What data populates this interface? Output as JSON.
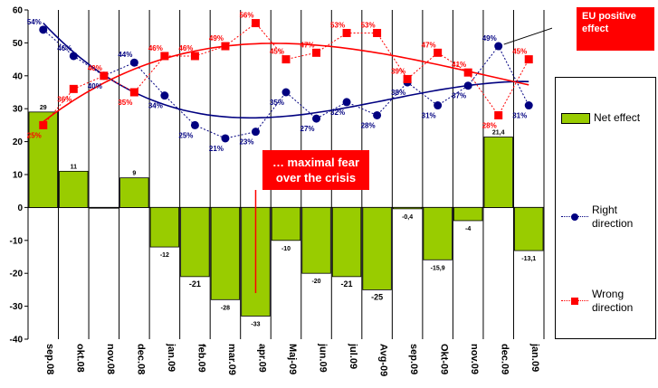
{
  "colors": {
    "net_effect": "#99cc00",
    "right_direction": "#000080",
    "wrong_direction": "#ff0000",
    "trend_right": "#000080",
    "trend_wrong": "#ff0000",
    "callout_bg": "#ff0000"
  },
  "chart_data": {
    "type": "bar",
    "categories": [
      "sep.08",
      "okt.08",
      "nov.08",
      "dec.08",
      "jan.09",
      "feb.09",
      "mar.09",
      "apr.09",
      "Maj-09",
      "jun.09",
      "jul.09",
      "Avg-09",
      "sep.09",
      "Okt-09",
      "nov.09",
      "dec.09",
      "jan.09"
    ],
    "ylim": [
      -40,
      60
    ],
    "yticks": [
      -40,
      -30,
      -20,
      -10,
      0,
      10,
      20,
      30,
      40,
      50,
      60
    ],
    "grid": true,
    "legend_position": "right",
    "series": [
      {
        "name": "Net effect",
        "type": "bar",
        "values": [
          29,
          11,
          0,
          9,
          -12,
          -21,
          -28,
          -33,
          -10,
          -20,
          -21,
          -25,
          -0.4,
          -15.9,
          -4,
          21.4,
          -13.1
        ],
        "labels": [
          "29",
          "11",
          "",
          "9",
          "-12",
          "-21",
          "-28",
          "-33",
          "-10",
          "-20",
          "-21",
          "-25",
          "-0,4",
          "-15,9",
          "-4",
          "21,4",
          "-13,1"
        ]
      },
      {
        "name": "Right direction",
        "type": "line",
        "values": [
          54,
          46,
          40,
          44,
          34,
          25,
          21,
          23,
          35,
          27,
          32,
          28,
          38,
          31,
          37,
          49,
          31
        ],
        "labels": [
          "54%",
          "46%",
          "40%",
          "44%",
          "34%",
          "25%",
          "21%",
          "23%",
          "35%",
          "27%",
          "32%",
          "28%",
          "38%",
          "31%",
          "37%",
          "49%",
          "31%"
        ]
      },
      {
        "name": "Wrong direction",
        "type": "line",
        "values": [
          25,
          36,
          40,
          35,
          46,
          46,
          49,
          56,
          45,
          47,
          53,
          53,
          39,
          47,
          41,
          28,
          45
        ],
        "labels": [
          "25%",
          "36%",
          "40%",
          "35%",
          "46%",
          "46%",
          "49%",
          "56%",
          "45%",
          "47%",
          "53%",
          "53%",
          "39%",
          "47%",
          "41%",
          "28%",
          "45%"
        ]
      }
    ],
    "annotations": [
      {
        "text": "EU positive effect"
      },
      {
        "text": "… maximal fear over the crisis"
      }
    ]
  },
  "legend": {
    "net_effect": "Net effect",
    "right_direction": "Right\ndirection",
    "wrong_direction": "Wrong\ndirection"
  },
  "callouts": {
    "eu_effect": "EU positive\neffect",
    "fear": "… maximal fear\nover the crisis"
  }
}
